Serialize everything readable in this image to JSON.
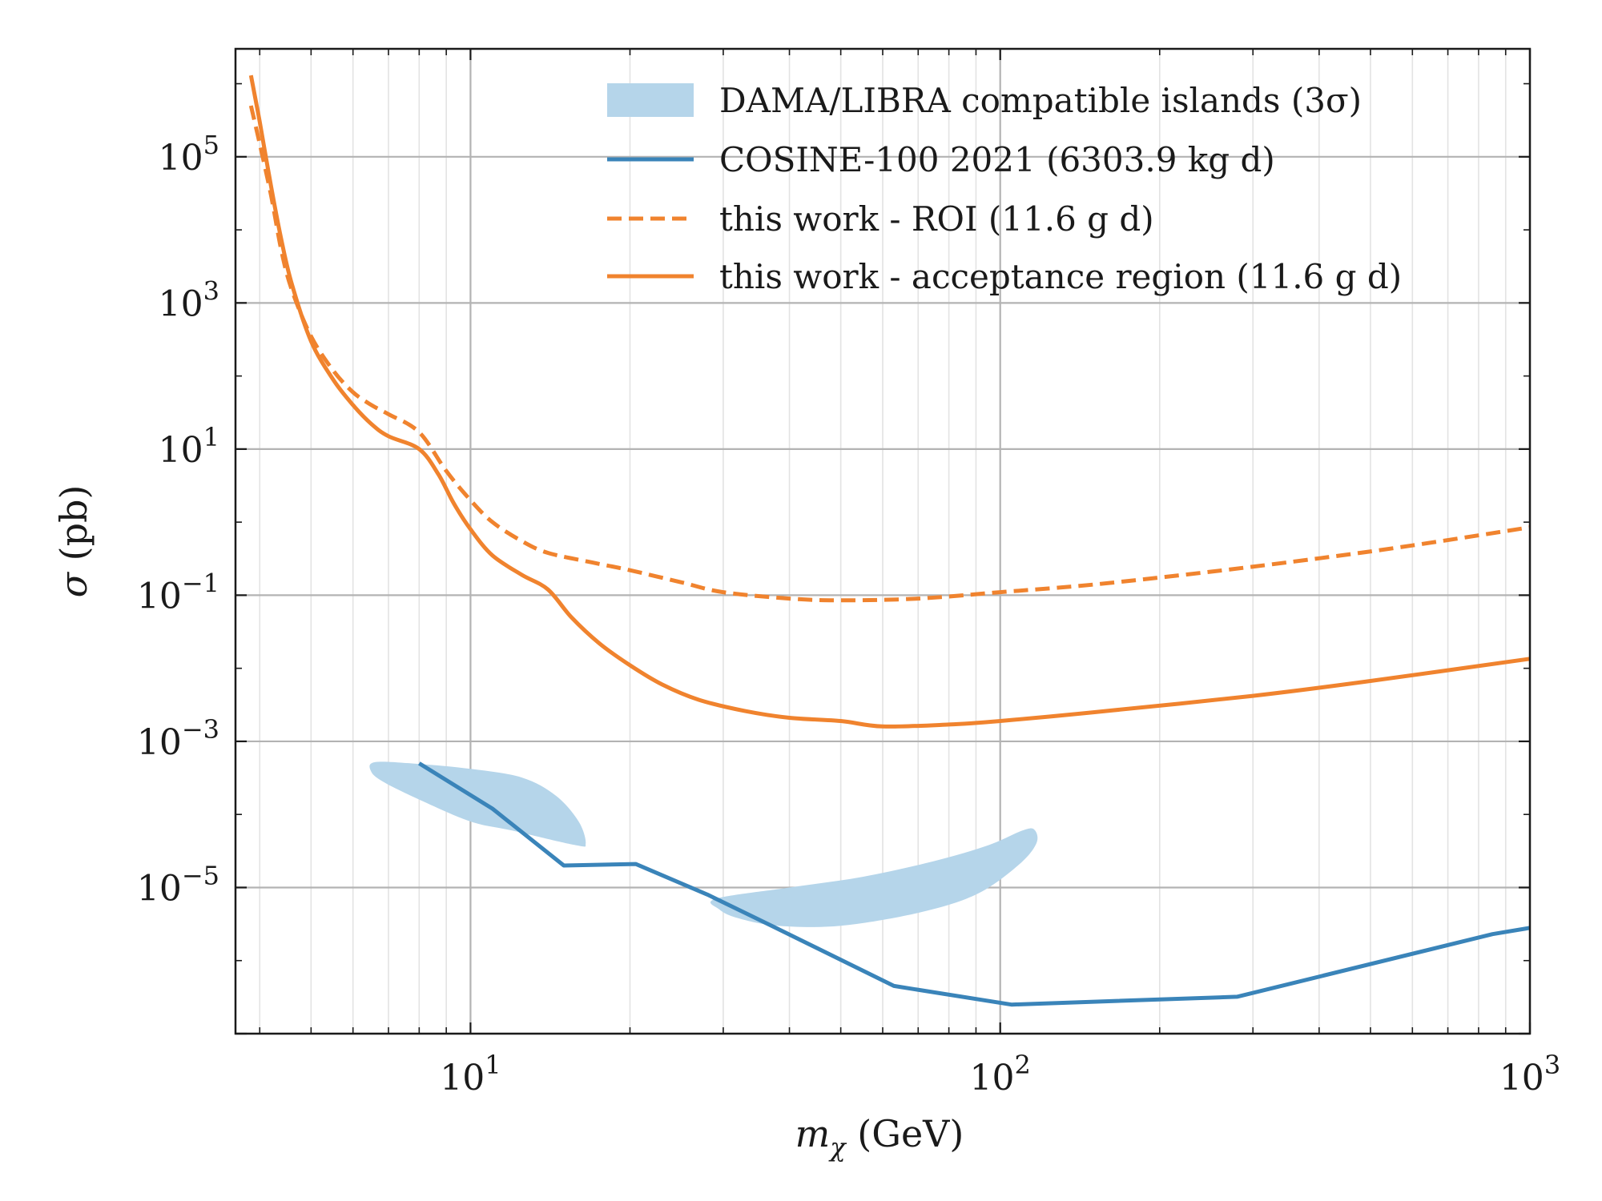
{
  "chart_data": {
    "type": "line",
    "xscale": "log",
    "yscale": "log",
    "xlim": [
      3.6,
      1000
    ],
    "ylim": [
      1e-07,
      3000000.0
    ],
    "grid": true,
    "legend_position": "top-right",
    "xlabel": {
      "symbol": "m",
      "subscript": "χ",
      "unit": "(GeV)"
    },
    "ylabel": {
      "symbol": "σ",
      "unit": "(pb)"
    },
    "x_ticks": [
      {
        "base": "10",
        "exp": "1",
        "value": 10
      },
      {
        "base": "10",
        "exp": "2",
        "value": 100
      },
      {
        "base": "10",
        "exp": "3",
        "value": 1000
      }
    ],
    "y_ticks": [
      {
        "base": "10",
        "exp": "5",
        "value": 100000.0
      },
      {
        "base": "10",
        "exp": "3",
        "value": 1000.0
      },
      {
        "base": "10",
        "exp": "1",
        "value": 10
      },
      {
        "base": "10",
        "exp": "−1",
        "value": 0.1
      },
      {
        "base": "10",
        "exp": "−3",
        "value": 0.001
      },
      {
        "base": "10",
        "exp": "−5",
        "value": 1e-05
      }
    ],
    "colors": {
      "blue": "#3a84b9",
      "orange": "#f0832e",
      "fill": "#b5d5ea"
    },
    "legend": [
      {
        "label": "DAMA/LIBRA compatible islands (3σ)",
        "style": "fill",
        "color": "#b5d5ea"
      },
      {
        "label": "COSINE-100 2021 (6303.9 kg d)",
        "style": "solid",
        "color": "#3a84b9"
      },
      {
        "label": "this work - ROI (11.6 g d)",
        "style": "dashed",
        "color": "#f0832e"
      },
      {
        "label": "this work - acceptance region (11.6 g d)",
        "style": "solid",
        "color": "#f0832e"
      }
    ],
    "series": [
      {
        "name": "this work - acceptance region (11.6 g d)",
        "style": "solid",
        "color": "#f0832e",
        "points": [
          [
            3.85,
            1300000.0
          ],
          [
            4.0,
            300000.0
          ],
          [
            4.2,
            40000.0
          ],
          [
            4.4,
            7000.0
          ],
          [
            4.6,
            1800.0
          ],
          [
            5.0,
            300.0
          ],
          [
            5.5,
            90
          ],
          [
            6.0,
            40
          ],
          [
            6.5,
            22
          ],
          [
            7.0,
            15
          ],
          [
            8.0,
            10
          ],
          [
            8.7,
            4.5
          ],
          [
            9.3,
            1.8
          ],
          [
            10.0,
            0.8
          ],
          [
            11.0,
            0.35
          ],
          [
            12.5,
            0.19
          ],
          [
            14.0,
            0.12
          ],
          [
            15.5,
            0.05
          ],
          [
            17.5,
            0.022
          ],
          [
            20.0,
            0.011
          ],
          [
            23.0,
            0.006
          ],
          [
            27.0,
            0.0037
          ],
          [
            33.0,
            0.0026
          ],
          [
            40.0,
            0.0021
          ],
          [
            50.0,
            0.0019
          ],
          [
            60.0,
            0.0016
          ],
          [
            80.0,
            0.0017
          ],
          [
            100.0,
            0.0019
          ],
          [
            150.0,
            0.0025
          ],
          [
            300.0,
            0.0042
          ],
          [
            500.0,
            0.0067
          ],
          [
            1000.0,
            0.0135
          ]
        ]
      },
      {
        "name": "this work - ROI (11.6 g d)",
        "style": "dashed",
        "color": "#f0832e",
        "points": [
          [
            3.85,
            500000.0
          ],
          [
            4.0,
            150000.0
          ],
          [
            4.2,
            30000.0
          ],
          [
            4.4,
            5000.0
          ],
          [
            4.6,
            1500.0
          ],
          [
            5.0,
            350.0
          ],
          [
            5.5,
            120.0
          ],
          [
            6.0,
            60
          ],
          [
            6.5,
            40
          ],
          [
            7.0,
            30
          ],
          [
            8.0,
            17
          ],
          [
            9.0,
            5.0
          ],
          [
            10.0,
            2.0
          ],
          [
            11.0,
            1.0
          ],
          [
            12.5,
            0.55
          ],
          [
            14.0,
            0.38
          ],
          [
            17.0,
            0.28
          ],
          [
            20.0,
            0.22
          ],
          [
            25.0,
            0.15
          ],
          [
            30.0,
            0.11
          ],
          [
            40.0,
            0.09
          ],
          [
            50.0,
            0.085
          ],
          [
            70.0,
            0.09
          ],
          [
            100.0,
            0.11
          ],
          [
            150.0,
            0.14
          ],
          [
            250.0,
            0.21
          ],
          [
            400.0,
            0.32
          ],
          [
            600.0,
            0.48
          ],
          [
            1000.0,
            0.85
          ]
        ]
      },
      {
        "name": "COSINE-100 2021 (6303.9 kg d)",
        "style": "solid",
        "color": "#3a84b9",
        "points": [
          [
            8.0,
            0.0005
          ],
          [
            11.0,
            0.00012
          ],
          [
            15.0,
            2e-05
          ],
          [
            20.5,
            2.1e-05
          ],
          [
            28.0,
            8e-06
          ],
          [
            37.0,
            3e-06
          ],
          [
            63.0,
            4.5e-07
          ],
          [
            105.0,
            2.5e-07
          ],
          [
            280.0,
            3.2e-07
          ],
          [
            850.0,
            2.3e-06
          ],
          [
            1000.0,
            2.8e-06
          ]
        ]
      }
    ],
    "regions": [
      {
        "name": "DAMA/LIBRA island (low mass)",
        "color": "#b5d5ea",
        "points": [
          [
            6.6,
            0.00052
          ],
          [
            8.0,
            0.00049
          ],
          [
            10.0,
            0.00042
          ],
          [
            12.5,
            0.00032
          ],
          [
            14.5,
            0.00018
          ],
          [
            16.0,
            8e-05
          ],
          [
            16.5,
            4e-05
          ],
          [
            15.8,
            3.8e-05
          ],
          [
            12.0,
            6e-05
          ],
          [
            10.0,
            8e-05
          ],
          [
            8.0,
            0.00016
          ],
          [
            6.9,
            0.00027
          ],
          [
            6.5,
            0.00038
          ]
        ]
      },
      {
        "name": "DAMA/LIBRA island (high mass)",
        "color": "#b5d5ea",
        "points": [
          [
            29.0,
            7e-06
          ],
          [
            40.0,
            1e-05
          ],
          [
            55.0,
            1.4e-05
          ],
          [
            75.0,
            2.3e-05
          ],
          [
            95.0,
            3.8e-05
          ],
          [
            110.0,
            6e-05
          ],
          [
            116.0,
            6.2e-05
          ],
          [
            117.0,
            4e-05
          ],
          [
            108.0,
            2e-05
          ],
          [
            90.0,
            8e-06
          ],
          [
            70.0,
            4.5e-06
          ],
          [
            50.0,
            3e-06
          ],
          [
            38.0,
            3e-06
          ],
          [
            32.0,
            3.8e-06
          ],
          [
            29.5,
            5e-06
          ]
        ]
      }
    ]
  }
}
